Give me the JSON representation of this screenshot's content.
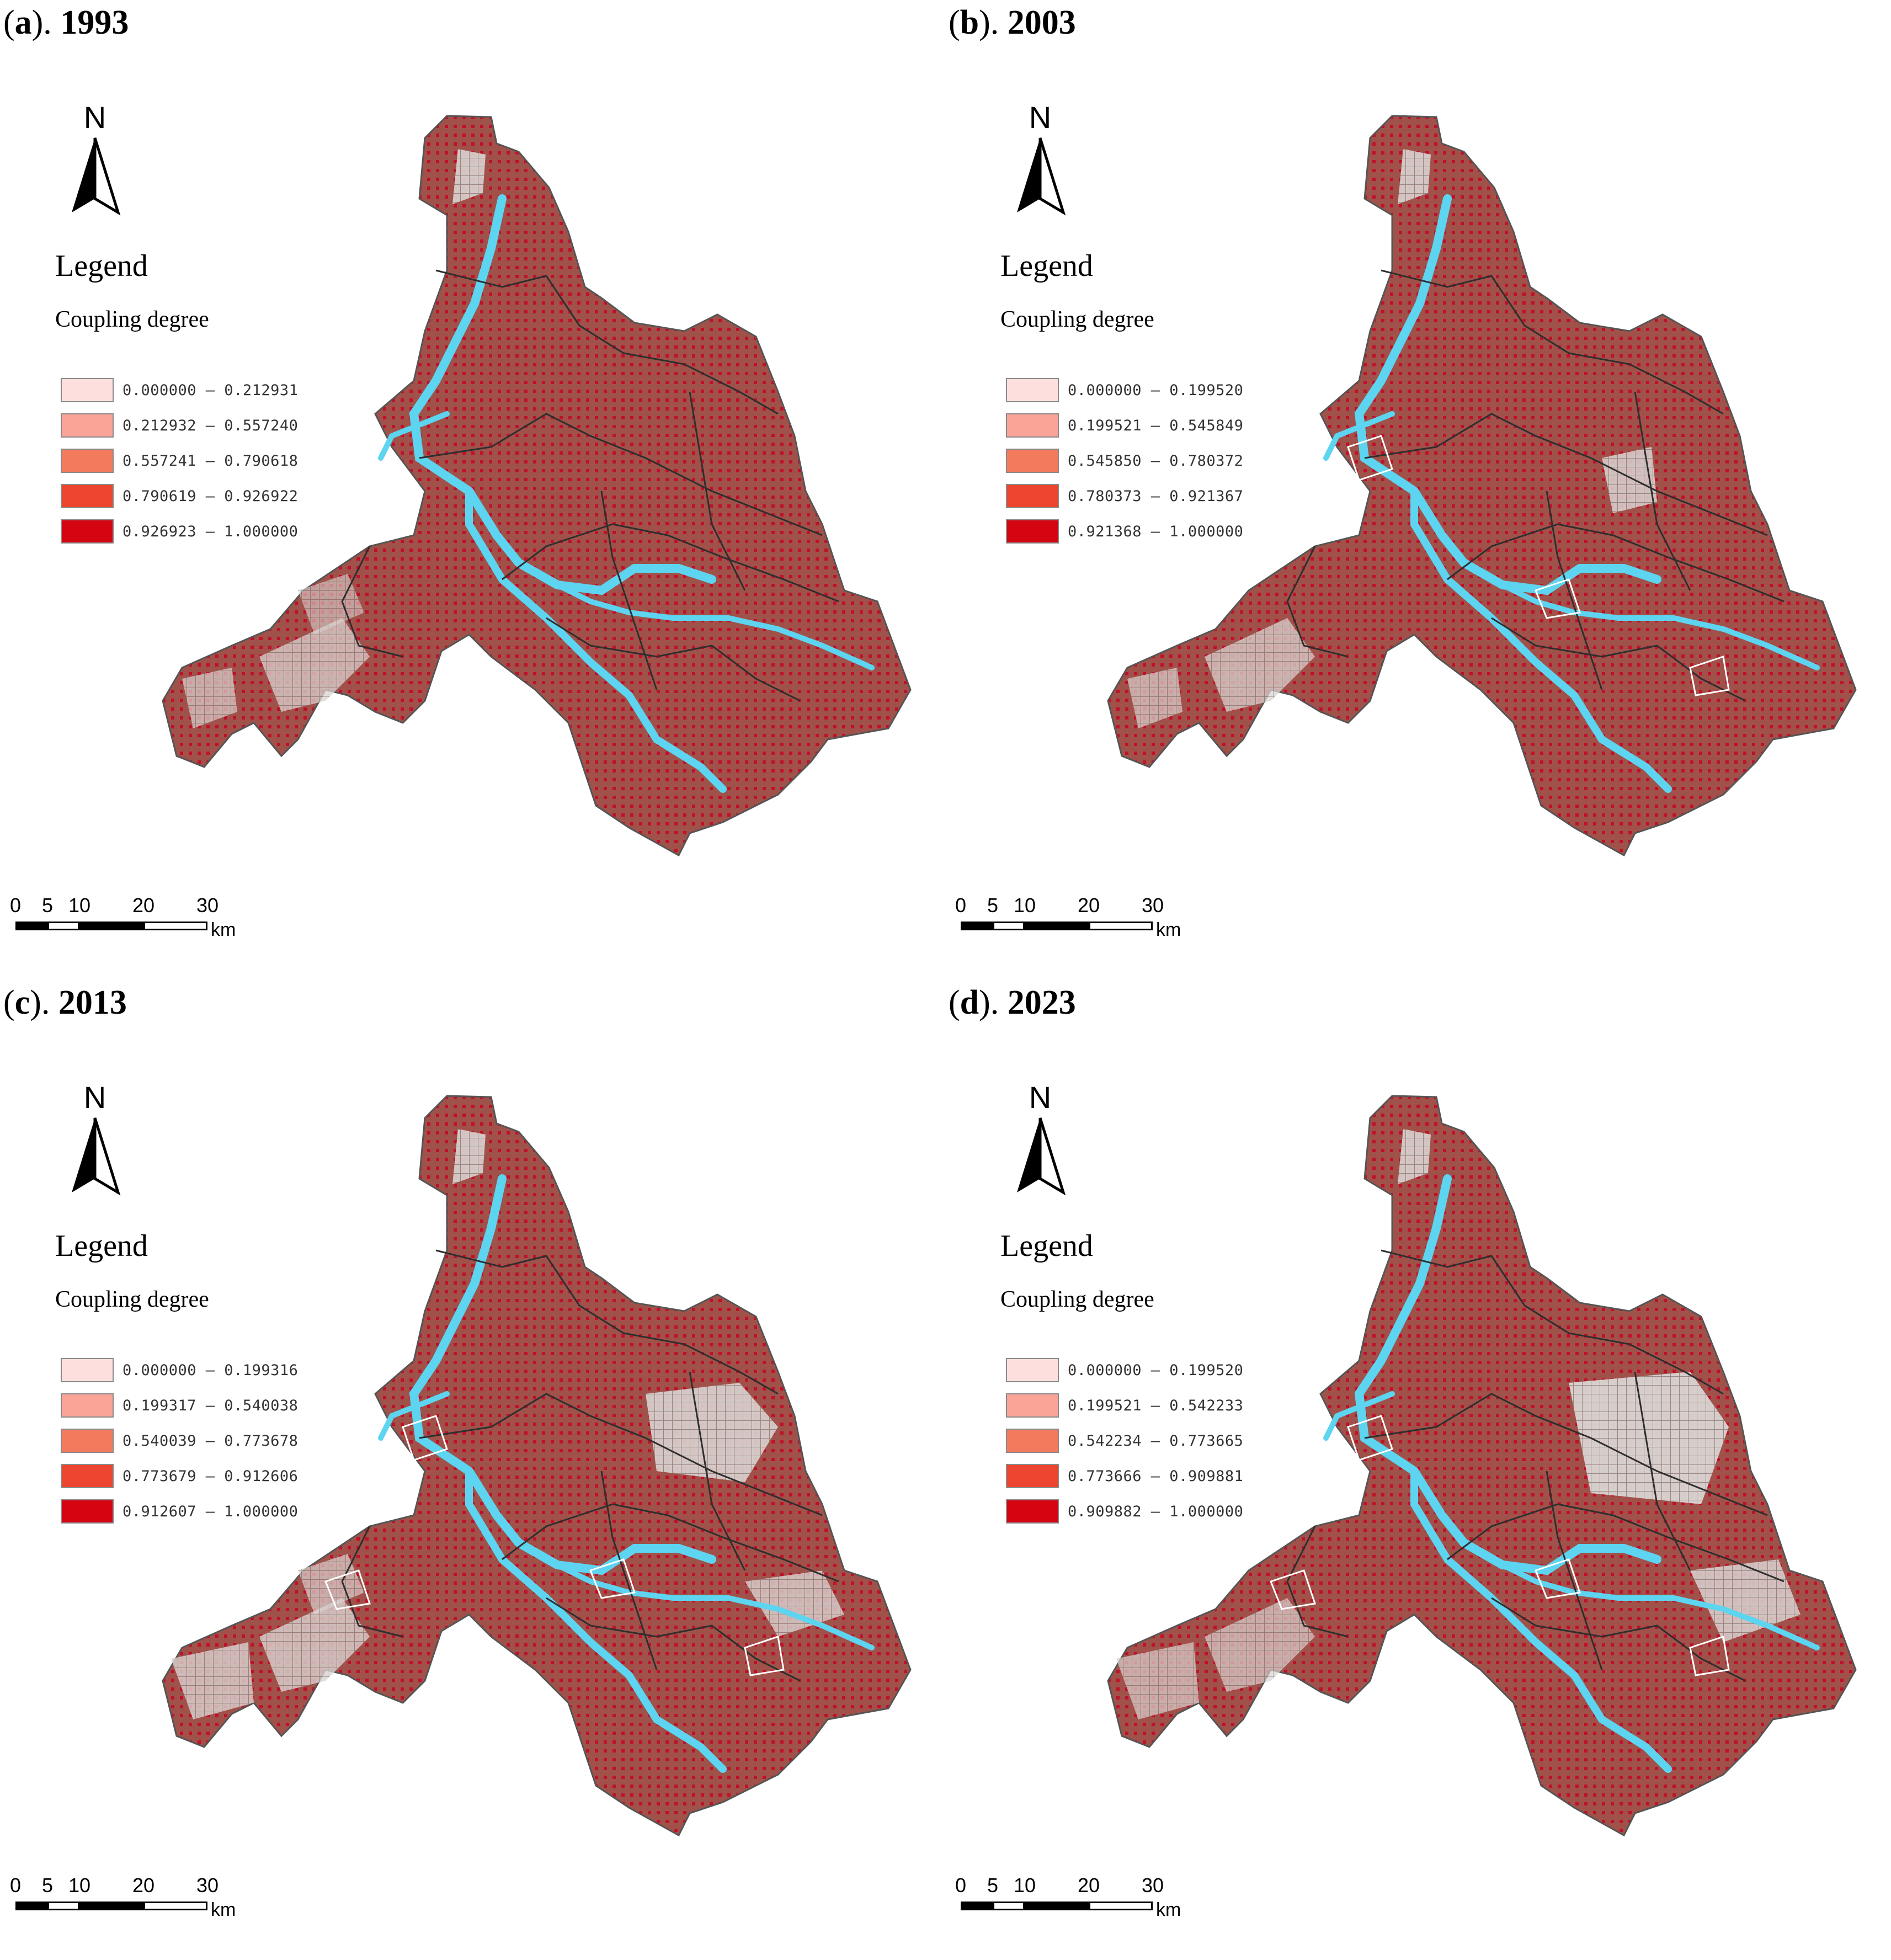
{
  "north_label": "N",
  "legend_title": "Legend",
  "legend_subtitle": "Coupling degree",
  "class_colors": [
    "#fde0de",
    "#f9a496",
    "#f47a5e",
    "#ec4530",
    "#d40511"
  ],
  "map_colors": {
    "land": "#a0524a",
    "cells_light": "#d9d4d2",
    "river": "#5dd4f0",
    "boundary": "#333333"
  },
  "scale": {
    "ticks": [
      "0",
      "5",
      "10",
      "20",
      "30"
    ],
    "unit": "km"
  },
  "panels": [
    {
      "label": "(a). 1993",
      "letter": "a",
      "year": "1993",
      "classes": [
        "0.000000 – 0.212931",
        "0.212932 – 0.557240",
        "0.557241 – 0.790618",
        "0.790619 – 0.926922",
        "0.926923 – 1.000000"
      ]
    },
    {
      "label": "(b). 2003",
      "letter": "b",
      "year": "2003",
      "classes": [
        "0.000000 – 0.199520",
        "0.199521 – 0.545849",
        "0.545850 – 0.780372",
        "0.780373 – 0.921367",
        "0.921368 – 1.000000"
      ]
    },
    {
      "label": "(c). 2013",
      "letter": "c",
      "year": "2013",
      "classes": [
        "0.000000 – 0.199316",
        "0.199317 – 0.540038",
        "0.540039 – 0.773678",
        "0.773679 – 0.912606",
        "0.912607 – 1.000000"
      ]
    },
    {
      "label": "(d). 2023",
      "letter": "d",
      "year": "2023",
      "classes": [
        "0.000000 – 0.199520",
        "0.199521 – 0.542233",
        "0.542234 – 0.773665",
        "0.773666 – 0.909881",
        "0.909882 – 1.000000"
      ]
    }
  ]
}
